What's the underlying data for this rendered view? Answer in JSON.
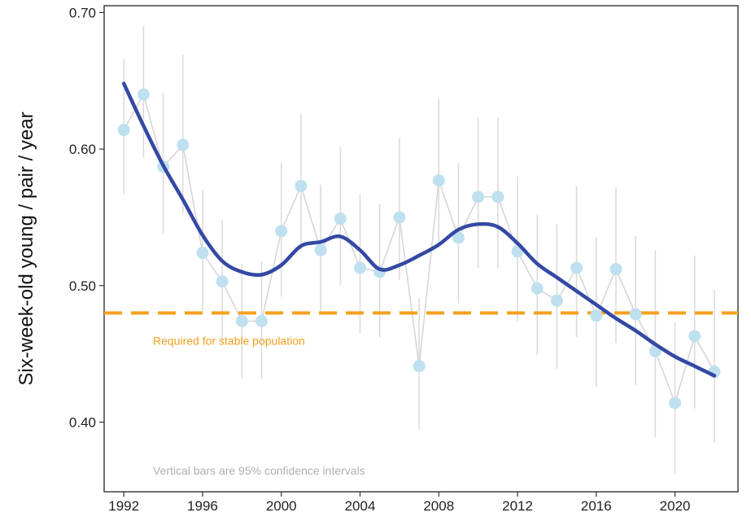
{
  "chart_data": {
    "type": "scatter",
    "title": "",
    "xlabel": "",
    "ylabel": "Six-week-old young / pair / year",
    "xlim": [
      1991.0,
      2023.2
    ],
    "ylim": [
      0.349,
      0.705
    ],
    "x_ticks": [
      1992,
      1996,
      2000,
      2004,
      2008,
      2012,
      2016,
      2020
    ],
    "y_ticks": [
      0.4,
      0.5,
      0.6,
      0.7
    ],
    "y_tick_labels": [
      "0.40",
      "0.50",
      "0.60",
      "0.70"
    ],
    "grid": false,
    "colors": {
      "points": "#bfe0ef",
      "point_line": "#d6d6d6",
      "error_bars": "#dcdcdc",
      "smooth": "#3448a4",
      "reference": "#f5a01e",
      "axis": "#333333"
    },
    "series": [
      {
        "x": [
          1992,
          1993,
          1994,
          1995,
          1996,
          1997,
          1998,
          1999,
          2000,
          2001,
          2002,
          2003,
          2004,
          2005,
          2006,
          2007,
          2008,
          2009,
          2010,
          2011,
          2012,
          2013,
          2014,
          2015,
          2016,
          2017,
          2018,
          2019,
          2020,
          2021,
          2022
        ],
        "y": [
          0.614,
          0.64,
          0.587,
          0.603,
          0.524,
          0.503,
          0.474,
          0.474,
          0.54,
          0.573,
          0.526,
          0.549,
          0.513,
          0.51,
          0.55,
          0.441,
          0.577,
          0.535,
          0.565,
          0.565,
          0.525,
          0.498,
          0.489,
          0.513,
          0.478,
          0.512,
          0.479,
          0.452,
          0.414,
          0.463,
          0.437
        ],
        "ci_low": [
          0.567,
          0.594,
          0.538,
          0.553,
          0.481,
          0.459,
          0.432,
          0.432,
          0.492,
          0.525,
          0.48,
          0.5,
          0.465,
          0.462,
          0.504,
          0.395,
          0.528,
          0.487,
          0.513,
          0.513,
          0.474,
          0.449,
          0.439,
          0.462,
          0.426,
          0.458,
          0.427,
          0.389,
          0.362,
          0.41,
          0.385
        ],
        "ci_high": [
          0.666,
          0.69,
          0.641,
          0.669,
          0.57,
          0.548,
          0.516,
          0.518,
          0.59,
          0.626,
          0.574,
          0.602,
          0.567,
          0.56,
          0.608,
          0.491,
          0.637,
          0.59,
          0.623,
          0.623,
          0.58,
          0.552,
          0.545,
          0.573,
          0.535,
          0.572,
          0.536,
          0.526,
          0.473,
          0.522,
          0.497
        ]
      }
    ],
    "smooth_trend": {
      "x": [
        1992,
        1993,
        1994,
        1995,
        1996,
        1997,
        1998,
        1999,
        2000,
        2001,
        2002,
        2003,
        2004,
        2005,
        2006,
        2007,
        2008,
        2009,
        2010,
        2011,
        2012,
        2013,
        2014,
        2015,
        2016,
        2017,
        2018,
        2019,
        2020,
        2021,
        2022
      ],
      "y": [
        0.648,
        0.617,
        0.588,
        0.563,
        0.537,
        0.518,
        0.51,
        0.508,
        0.515,
        0.529,
        0.532,
        0.536,
        0.526,
        0.512,
        0.515,
        0.522,
        0.53,
        0.541,
        0.545,
        0.543,
        0.531,
        0.516,
        0.506,
        0.496,
        0.486,
        0.476,
        0.467,
        0.457,
        0.448,
        0.441,
        0.434
      ]
    },
    "reference_line": {
      "y": 0.48,
      "label": "Required for stable population"
    },
    "note": "Vertical bars are 95% confidence intervals"
  }
}
